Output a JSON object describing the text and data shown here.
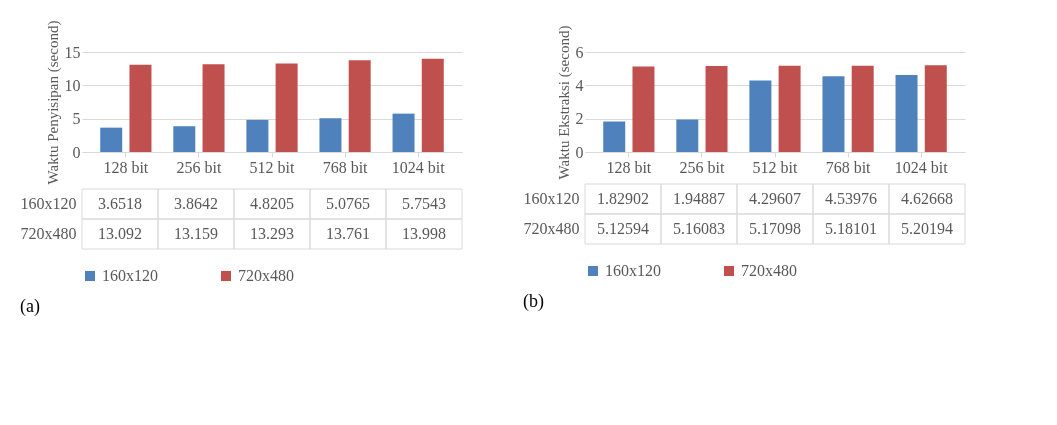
{
  "chart_data": [
    {
      "type": "bar",
      "ylabel": "Waktu Penyisipan (second)",
      "categories": [
        "128 bit",
        "256 bit",
        "512 bit",
        "768 bit",
        "1024 bit"
      ],
      "series": [
        {
          "name": "160x120",
          "color": "#4f81bd",
          "values": [
            3.6518,
            3.8642,
            4.8205,
            5.0765,
            5.7543
          ]
        },
        {
          "name": "720x480",
          "color": "#c0504d",
          "values": [
            13.092,
            13.159,
            13.293,
            13.761,
            13.998
          ]
        }
      ],
      "ylim": [
        0,
        15
      ],
      "yticks": [
        0,
        5,
        10,
        15
      ],
      "grid": "y",
      "legend": "bottom",
      "data_labels": true,
      "annotations": [
        "(a)"
      ]
    },
    {
      "type": "bar",
      "ylabel": "Waktu Ekstraksi (second)",
      "categories": [
        "128 bit",
        "256 bit",
        "512 bit",
        "768 bit",
        "1024 bit"
      ],
      "series": [
        {
          "name": "160x120",
          "color": "#4f81bd",
          "values": [
            1.82902,
            1.94887,
            4.29607,
            4.53976,
            4.62668
          ]
        },
        {
          "name": "720x480",
          "color": "#c0504d",
          "values": [
            5.12594,
            5.16083,
            5.17098,
            5.18101,
            5.20194
          ]
        }
      ],
      "ylim": [
        0,
        6
      ],
      "yticks": [
        0,
        2,
        4,
        6
      ],
      "grid": "y",
      "legend": "bottom",
      "data_labels": true,
      "annotations": [
        "(b)"
      ]
    }
  ]
}
